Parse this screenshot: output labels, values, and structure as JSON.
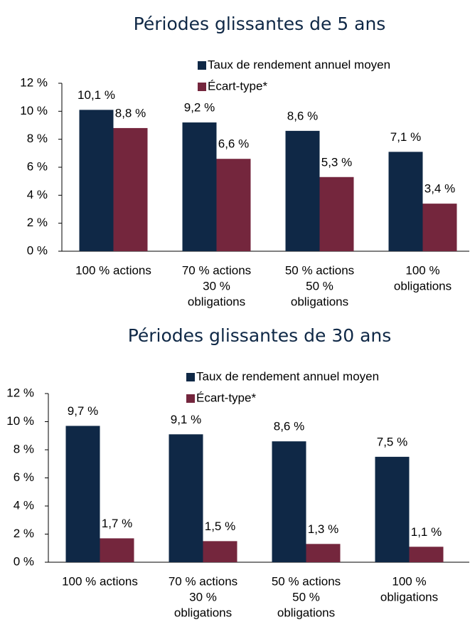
{
  "chart_data": [
    {
      "type": "bar",
      "title": "Périodes glissantes de 5 ans",
      "categories": [
        [
          "100 % actions"
        ],
        [
          "70 % actions",
          "30 %",
          "obligations"
        ],
        [
          "50 % actions",
          "50 %",
          "obligations"
        ],
        [
          "100 %",
          "obligations"
        ]
      ],
      "series": [
        {
          "name": "Taux de rendement annuel moyen",
          "color": "#0f2846",
          "values": [
            10.1,
            9.2,
            8.6,
            7.1
          ],
          "value_labels": [
            "10,1 %",
            "9,2 %",
            "8,6 %",
            "7,1 %"
          ]
        },
        {
          "name": "Écart-type*",
          "color": "#74263d",
          "values": [
            8.8,
            6.6,
            5.3,
            3.4
          ],
          "value_labels": [
            "8,8 %",
            "6,6 %",
            "5,3 %",
            "3,4 %"
          ]
        }
      ],
      "ylim": [
        0,
        12
      ],
      "yticks": [
        {
          "value": 0,
          "label": "0 %"
        },
        {
          "value": 2,
          "label": "2 %"
        },
        {
          "value": 4,
          "label": "4 %"
        },
        {
          "value": 6,
          "label": "6 %"
        },
        {
          "value": 8,
          "label": "8 %"
        },
        {
          "value": 10,
          "label": "10 %"
        },
        {
          "value": 12,
          "label": "12 %"
        }
      ]
    },
    {
      "type": "bar",
      "title": "Périodes glissantes de 30 ans",
      "categories": [
        [
          "100 % actions"
        ],
        [
          "70 % actions",
          "30 %",
          "obligations"
        ],
        [
          "50 % actions",
          "50 %",
          "obligations"
        ],
        [
          "100 %",
          "obligations"
        ]
      ],
      "series": [
        {
          "name": "Taux de rendement annuel moyen",
          "color": "#0f2846",
          "values": [
            9.7,
            9.1,
            8.6,
            7.5
          ],
          "value_labels": [
            "9,7 %",
            "9,1 %",
            "8,6 %",
            "7,5 %"
          ]
        },
        {
          "name": "Écart-type*",
          "color": "#74263d",
          "values": [
            1.7,
            1.5,
            1.3,
            1.1
          ],
          "value_labels": [
            "1,7 %",
            "1,5 %",
            "1,3 %",
            "1,1 %"
          ]
        }
      ],
      "ylim": [
        0,
        12
      ],
      "yticks": [
        {
          "value": 0,
          "label": "0 %"
        },
        {
          "value": 2,
          "label": "2 %"
        },
        {
          "value": 4,
          "label": "4 %"
        },
        {
          "value": 6,
          "label": "6 %"
        },
        {
          "value": 8,
          "label": "8 %"
        },
        {
          "value": 10,
          "label": "10 %"
        },
        {
          "value": 12,
          "label": "12 %"
        }
      ]
    }
  ]
}
